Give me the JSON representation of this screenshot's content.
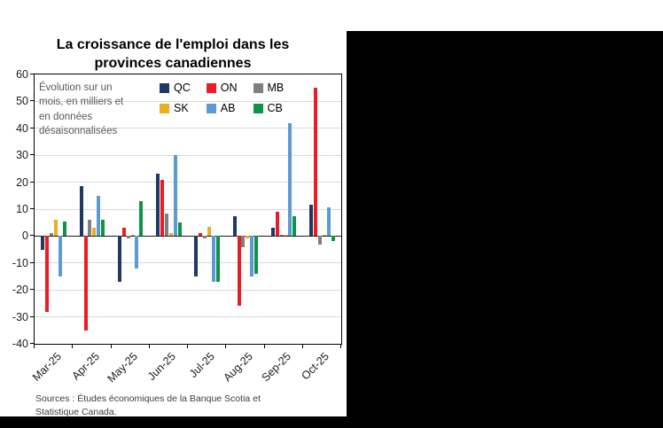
{
  "chart": {
    "title": "La croissance de l'emploi dans les provinces canadiennes",
    "annotation": "Évolution sur un mois, en milliers et en données désaisonnalisées",
    "source_line1": "Sources : Études économiques de la Banque Scotia et",
    "source_line2": "Statistique Canada."
  },
  "chart_data": {
    "type": "bar",
    "title": "La croissance de l'emploi dans les provinces canadiennes",
    "subtitle": "Évolution sur un mois, en milliers et en données désaisonnalisées",
    "categories": [
      "Mar-25",
      "Apr-25",
      "May-25",
      "Jun-25",
      "Jul-25",
      "Aug-25",
      "Sep-25",
      "Oct-25"
    ],
    "series": [
      {
        "name": "QC",
        "color": "#1F3864",
        "values": [
          -5,
          18.5,
          -17,
          23,
          -15,
          7.5,
          3,
          11.5
        ]
      },
      {
        "name": "ON",
        "color": "#ED1C24",
        "values": [
          -28,
          -35,
          3,
          21,
          1,
          -26,
          9,
          55
        ]
      },
      {
        "name": "MB",
        "color": "#7F7F7F",
        "values": [
          1,
          6,
          -1,
          8.5,
          -1,
          -4,
          0.5,
          -3
        ]
      },
      {
        "name": "SK",
        "color": "#EAAE24",
        "values": [
          6,
          3,
          0.5,
          1,
          3.5,
          -1,
          0.5,
          0.5
        ]
      },
      {
        "name": "AB",
        "color": "#5B9BD5",
        "values": [
          -15,
          15,
          -12,
          30,
          -17,
          -15,
          42,
          10.5
        ]
      },
      {
        "name": "CB",
        "color": "#0F9347",
        "values": [
          5.5,
          6,
          13,
          5,
          -17,
          -14,
          7.5,
          -2
        ]
      }
    ],
    "ylim": [
      -40,
      60
    ],
    "ytick_step": 10,
    "grid": true,
    "legend_position": "top-inside",
    "xlabel": "",
    "ylabel": ""
  }
}
